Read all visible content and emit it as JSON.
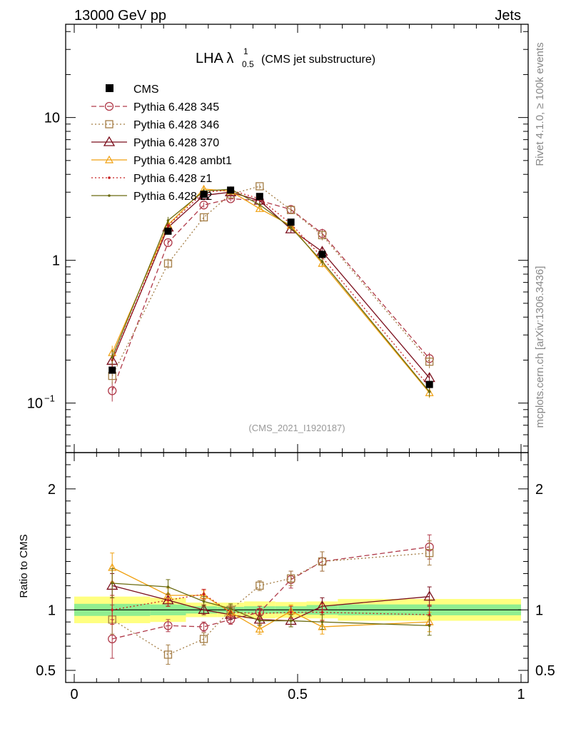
{
  "header": {
    "energy_label": "13000 GeV pp",
    "process_label": "Jets"
  },
  "side": {
    "rivet_label": "Rivet 4.1.0, ≥ 100k events",
    "mcplots_label": "mcplots.cern.ch [arXiv:1306.3436]"
  },
  "chart_data": {
    "type": "line",
    "title_main": "LHA λ",
    "title_sup": "1",
    "title_sub": "0.5",
    "title_suffix": "(CMS jet substructure)",
    "analysis_label": "(CMS_2021_I1920187)",
    "xlim": [
      0,
      1
    ],
    "ylim_main": [
      0.045,
      45
    ],
    "ylim_ratio": [
      0.4,
      2.3
    ],
    "ratio_ylabel": "Ratio to CMS",
    "x_ticks": [
      {
        "v": 0,
        "label": "0"
      },
      {
        "v": 0.5,
        "label": "0.5"
      },
      {
        "v": 1,
        "label": "1"
      }
    ],
    "main_y_ticks": [
      {
        "v": 10,
        "label": "10"
      },
      {
        "v": 1,
        "label": "1"
      },
      {
        "v": 0.1,
        "label": "10",
        "sup": "−1"
      }
    ],
    "ratio_y_ticks": [
      {
        "v": 2,
        "label": "2"
      },
      {
        "v": 1,
        "label": "1"
      },
      {
        "v": 0.5,
        "label": "0.5"
      }
    ],
    "x": [
      0.085,
      0.21,
      0.29,
      0.35,
      0.415,
      0.485,
      0.555,
      0.795
    ],
    "bin_edges": [
      0,
      0.17,
      0.25,
      0.32,
      0.38,
      0.45,
      0.52,
      0.59,
      1.0
    ],
    "data": {
      "name": "CMS",
      "values": [
        0.17,
        1.6,
        2.9,
        3.1,
        2.8,
        1.85,
        1.1,
        0.135
      ],
      "band_stat": [
        0.05,
        0.045,
        0.03,
        0.025,
        0.03,
        0.03,
        0.04,
        0.045
      ],
      "band_total": [
        0.11,
        0.1,
        0.06,
        0.06,
        0.07,
        0.065,
        0.07,
        0.09
      ]
    },
    "series": [
      {
        "name": "Pythia 6.428 345",
        "color": "#b03a4a",
        "marker": "circle",
        "dash": "7,4",
        "values": [
          0.122,
          1.33,
          2.44,
          2.7,
          2.62,
          2.27,
          1.54,
          0.205
        ],
        "ratio": [
          0.76,
          0.87,
          0.86,
          0.92,
          0.98,
          1.25,
          1.4,
          1.52
        ],
        "ratio_err": [
          0.16,
          0.05,
          0.04,
          0.04,
          0.05,
          0.07,
          0.08,
          0.1
        ]
      },
      {
        "name": "Pythia 6.428 346",
        "color": "#a47d45",
        "marker": "square",
        "dash": "2,3",
        "values": [
          0.155,
          0.95,
          2.0,
          2.9,
          3.3,
          2.25,
          1.5,
          0.195
        ],
        "ratio": [
          0.92,
          0.63,
          0.76,
          1.0,
          1.2,
          1.26,
          1.4,
          1.47
        ],
        "ratio_err": [
          0.12,
          0.08,
          0.05,
          0.04,
          0.04,
          0.06,
          0.08,
          0.1
        ]
      },
      {
        "name": "Pythia 6.428 370",
        "color": "#7a0e1c",
        "marker": "triangle",
        "dash": "",
        "values": [
          0.198,
          1.7,
          2.85,
          3.0,
          2.62,
          1.65,
          1.15,
          0.15
        ],
        "ratio": [
          1.2,
          1.08,
          1.0,
          0.96,
          0.92,
          0.91,
          1.03,
          1.11
        ],
        "ratio_err": [
          0.1,
          0.05,
          0.04,
          0.04,
          0.04,
          0.05,
          0.07,
          0.08
        ]
      },
      {
        "name": "Pythia 6.428 ambt1",
        "color": "#f0a010",
        "marker": "triangle-small",
        "dash": "",
        "values": [
          0.225,
          1.77,
          3.15,
          3.05,
          2.3,
          1.75,
          0.95,
          0.118
        ],
        "ratio": [
          1.35,
          1.12,
          1.12,
          0.98,
          0.84,
          0.99,
          0.86,
          0.9
        ],
        "ratio_err": [
          0.12,
          0.06,
          0.04,
          0.04,
          0.04,
          0.05,
          0.06,
          0.08
        ]
      },
      {
        "name": "Pythia 6.428 z1",
        "color": "#c62020",
        "marker": "dot",
        "dash": "2,3",
        "values": [
          0.2,
          1.75,
          3.0,
          3.1,
          2.7,
          1.8,
          1.05,
          0.13
        ],
        "ratio": [
          1.0,
          1.08,
          1.13,
          0.98,
          0.97,
          0.98,
          0.98,
          0.96
        ],
        "ratio_err": [
          0.12,
          0.05,
          0.04,
          0.04,
          0.04,
          0.05,
          0.07,
          0.08
        ]
      },
      {
        "name": "Pythia 6.428 z2",
        "color": "#6b6b10",
        "marker": "dot",
        "dash": "",
        "values": [
          0.21,
          1.9,
          3.05,
          3.15,
          2.45,
          1.7,
          0.98,
          0.12
        ],
        "ratio": [
          1.22,
          1.19,
          1.07,
          1.01,
          0.91,
          0.91,
          0.9,
          0.87
        ],
        "ratio_err": [
          0.12,
          0.06,
          0.04,
          0.04,
          0.04,
          0.05,
          0.06,
          0.08
        ]
      }
    ]
  }
}
